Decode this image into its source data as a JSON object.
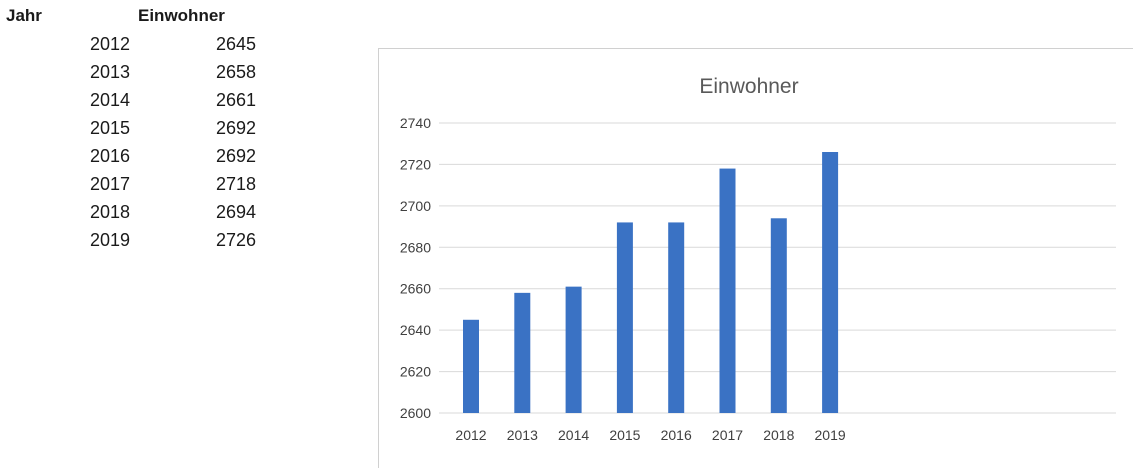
{
  "table": {
    "header_year": "Jahr",
    "header_value": "Einwohner",
    "rows": [
      {
        "year": "2012",
        "value": "2645"
      },
      {
        "year": "2013",
        "value": "2658"
      },
      {
        "year": "2014",
        "value": "2661"
      },
      {
        "year": "2015",
        "value": "2692"
      },
      {
        "year": "2016",
        "value": "2692"
      },
      {
        "year": "2017",
        "value": "2718"
      },
      {
        "year": "2018",
        "value": "2694"
      },
      {
        "year": "2019",
        "value": "2726"
      }
    ]
  },
  "chart_data": {
    "type": "bar",
    "title": "Einwohner",
    "categories": [
      "2012",
      "2013",
      "2014",
      "2015",
      "2016",
      "2017",
      "2018",
      "2019"
    ],
    "values": [
      2645,
      2658,
      2661,
      2692,
      2692,
      2718,
      2694,
      2726
    ],
    "ylim": [
      2600,
      2740
    ],
    "yticks": [
      2600,
      2620,
      2640,
      2660,
      2680,
      2700,
      2720,
      2740
    ],
    "grid": true,
    "legend": "none",
    "bar_color": "#3a72c4",
    "grid_color": "#d9d9d9"
  }
}
